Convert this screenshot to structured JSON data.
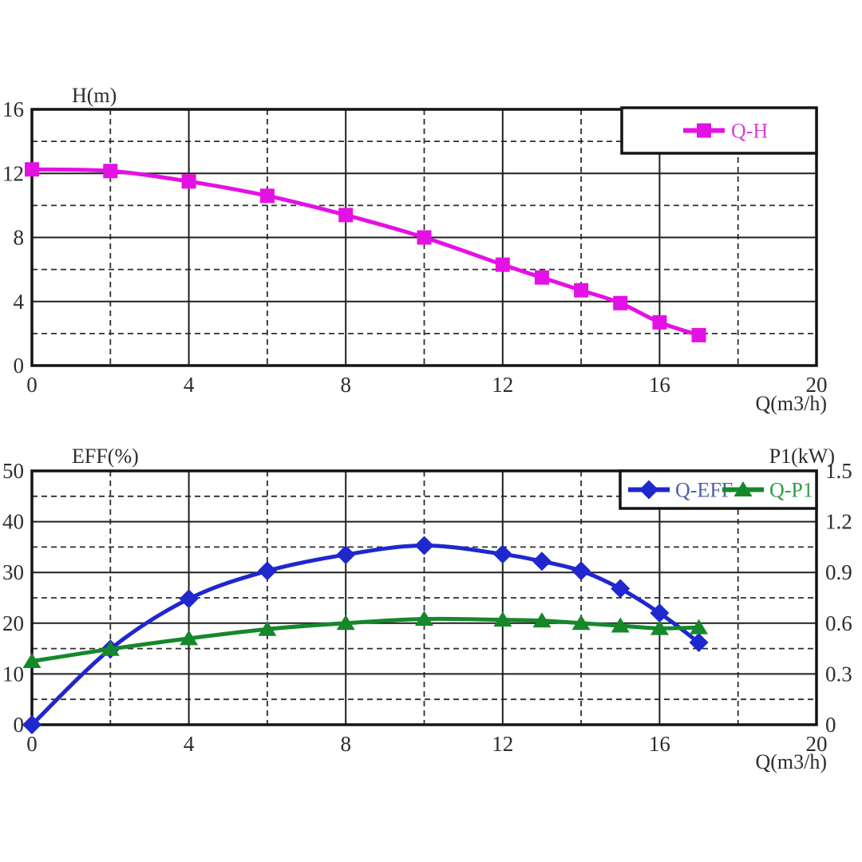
{
  "page": {
    "background": "#ffffff",
    "grid_color_major": "#1f1f1f",
    "grid_color_minor": "#2e2e2e",
    "border_color": "#141414",
    "tick_text_color": "#2d2d2d"
  },
  "chart_data": [
    {
      "type": "line",
      "id": "qh",
      "title_left": "H(m)",
      "xlabel": "Q(m3/h)",
      "x_range": [
        0,
        20
      ],
      "x_major_ticks": [
        0,
        4,
        8,
        12,
        16,
        20
      ],
      "x_minor_ticks": [
        2,
        6,
        10,
        14,
        18
      ],
      "y_left": {
        "range": [
          0,
          16
        ],
        "major_ticks": [
          0,
          4,
          8,
          12,
          16
        ],
        "minor_ticks": [
          2,
          6,
          10,
          14
        ]
      },
      "grid": true,
      "legend_position": "top-right",
      "series": [
        {
          "name": "Q-H",
          "axis": "left",
          "color": "#E411E4",
          "label_color": "#D83FD8",
          "marker": "square",
          "x": [
            0,
            2,
            4,
            6,
            8,
            10,
            12,
            13,
            14,
            15,
            16,
            17
          ],
          "y": [
            12.25,
            12.15,
            11.5,
            10.6,
            9.4,
            8.0,
            6.3,
            5.5,
            4.7,
            3.9,
            2.7,
            1.9
          ]
        }
      ]
    },
    {
      "type": "line",
      "id": "eff-p1",
      "title_left": "EFF(%)",
      "title_right": "P1(kW)",
      "xlabel": "Q(m3/h)",
      "x_range": [
        0,
        20
      ],
      "x_major_ticks": [
        0,
        4,
        8,
        12,
        16,
        20
      ],
      "x_minor_ticks": [
        2,
        6,
        10,
        14,
        18
      ],
      "y_left": {
        "range": [
          0,
          50
        ],
        "major_ticks": [
          0,
          10,
          20,
          30,
          40,
          50
        ],
        "minor_ticks": [
          5,
          15,
          25,
          35,
          45
        ]
      },
      "y_right": {
        "range": [
          0,
          1.5
        ],
        "major_ticks": [
          0,
          0.3,
          0.6,
          0.9,
          1.2,
          1.5
        ]
      },
      "grid": true,
      "legend_position": "top-right",
      "series": [
        {
          "name": "Q-EFF",
          "axis": "left",
          "color": "#1F27CE",
          "label_color": "#4F5FA8",
          "marker": "diamond",
          "x": [
            0,
            2,
            4,
            6,
            8,
            10,
            12,
            13,
            14,
            15,
            16,
            17
          ],
          "y": [
            0,
            14.9,
            24.8,
            30.3,
            33.5,
            35.3,
            33.6,
            32.2,
            30.3,
            26.8,
            22.0,
            16.2
          ]
        },
        {
          "name": "Q-P1",
          "axis": "right",
          "color": "#15882B",
          "label_color": "#2F9C45",
          "marker": "triangle",
          "x": [
            0,
            2,
            4,
            6,
            8,
            10,
            12,
            13,
            14,
            15,
            16,
            17
          ],
          "y": [
            0.375,
            0.447,
            0.51,
            0.565,
            0.6,
            0.625,
            0.62,
            0.615,
            0.6,
            0.585,
            0.57,
            0.575
          ]
        }
      ]
    }
  ]
}
